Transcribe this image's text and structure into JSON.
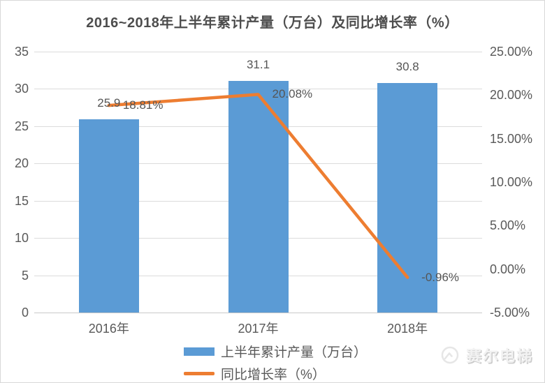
{
  "title": "2016~2018年上半年累计产量（万台）及同比增长率（%）",
  "chart_data": {
    "type": "combo-bar-line",
    "categories": [
      "2016年",
      "2017年",
      "2018年"
    ],
    "series": [
      {
        "name": "上半年累计产量（万台）",
        "type": "bar",
        "axis": "left",
        "values": [
          25.9,
          31.1,
          30.8
        ],
        "labels": [
          "25.9",
          "31.1",
          "30.8"
        ],
        "color": "#5B9BD5"
      },
      {
        "name": "同比增长率（%）",
        "type": "line",
        "axis": "right",
        "values": [
          18.81,
          20.08,
          -0.96
        ],
        "labels": [
          "18.81%",
          "20.08%",
          "-0.96%"
        ],
        "color": "#ED7D31"
      }
    ],
    "left_axis": {
      "min": 0,
      "max": 35,
      "step": 5,
      "tick_labels": [
        "35",
        "30",
        "25",
        "20",
        "15",
        "10",
        "5",
        "0"
      ]
    },
    "right_axis": {
      "min": -5,
      "max": 25,
      "step": 5,
      "tick_labels": [
        "25.00%",
        "20.00%",
        "15.00%",
        "10.00%",
        "5.00%",
        "0.00%",
        "-5.00%"
      ]
    },
    "grid": true,
    "legend_position": "bottom"
  },
  "watermark": {
    "text": "赛尔电梯",
    "icon": "brand-logo-icon"
  },
  "colors": {
    "bar": "#5B9BD5",
    "line": "#ED7D31",
    "grid": "#DCDCDC",
    "axis": "#C9C9C9",
    "text": "#595959",
    "background": "#FFFFFF",
    "border": "#D8D8D8",
    "watermark": "#E3E3E3"
  }
}
